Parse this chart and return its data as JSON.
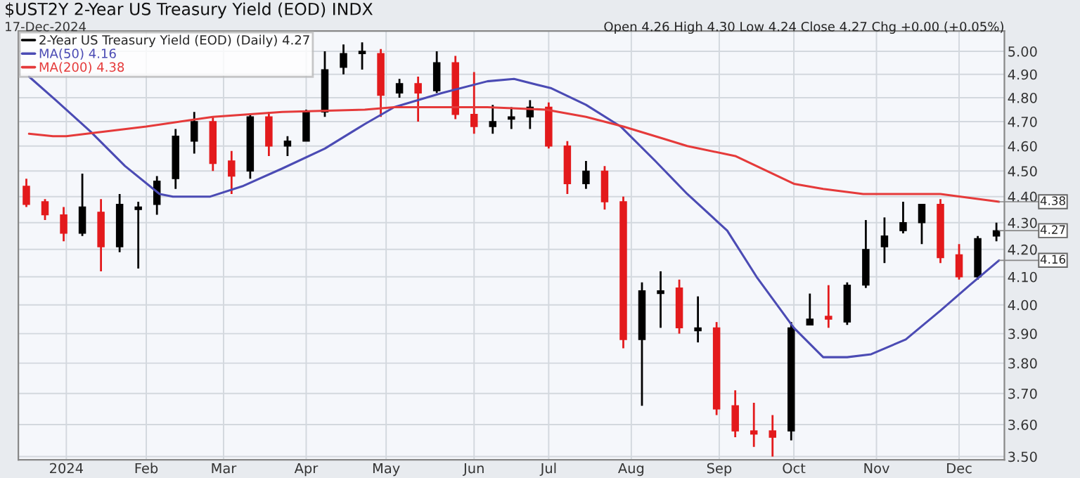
{
  "chart_data": {
    "type": "candlestick",
    "title": "$UST2Y 2-Year US Treasury Yield (EOD) INDX",
    "subtitle": "17-Dec-2024",
    "annotations": [
      "Open 4.26 High 4.30 Low 4.24 Close 4.27 Chg +0.00 (+0.05%)",
      {
        "text": "4.38",
        "x": "2024-12-17",
        "y": 4.38
      },
      {
        "text": "4.27",
        "x": "2024-12-17",
        "y": 4.27
      },
      {
        "text": "4.16",
        "x": "2024-12-17",
        "y": 4.16
      }
    ],
    "series": [
      {
        "name": "2-Year US Treasury Yield (EOD) (Daily) 4.27",
        "color": "#000000",
        "x": [
          "2023-12-18",
          "2023-12-25",
          "2024-01-01",
          "2024-01-08",
          "2024-01-15",
          "2024-01-22",
          "2024-01-29",
          "2024-02-05",
          "2024-02-12",
          "2024-02-19",
          "2024-02-26",
          "2024-03-04",
          "2024-03-11",
          "2024-03-18",
          "2024-03-25",
          "2024-04-01",
          "2024-04-08",
          "2024-04-15",
          "2024-04-22",
          "2024-04-29",
          "2024-05-06",
          "2024-05-13",
          "2024-05-20",
          "2024-05-27",
          "2024-06-03",
          "2024-06-10",
          "2024-06-17",
          "2024-06-24",
          "2024-07-01",
          "2024-07-08",
          "2024-07-15",
          "2024-07-22",
          "2024-07-29",
          "2024-08-05",
          "2024-08-12",
          "2024-08-19",
          "2024-08-26",
          "2024-09-02",
          "2024-09-09",
          "2024-09-16",
          "2024-09-23",
          "2024-09-30",
          "2024-10-07",
          "2024-10-14",
          "2024-10-21",
          "2024-10-28",
          "2024-11-04",
          "2024-11-11",
          "2024-11-18",
          "2024-11-25",
          "2024-12-02",
          "2024-12-09",
          "2024-12-16"
        ],
        "ohlc": [
          [
            4.44,
            4.47,
            4.36,
            4.37
          ],
          [
            4.38,
            4.39,
            4.31,
            4.33
          ],
          [
            4.33,
            4.36,
            4.23,
            4.26
          ],
          [
            4.26,
            4.49,
            4.25,
            4.36
          ],
          [
            4.34,
            4.39,
            4.12,
            4.21
          ],
          [
            4.21,
            4.41,
            4.19,
            4.37
          ],
          [
            4.35,
            4.38,
            4.13,
            4.36
          ],
          [
            4.37,
            4.48,
            4.33,
            4.46
          ],
          [
            4.47,
            4.67,
            4.43,
            4.64
          ],
          [
            4.62,
            4.74,
            4.57,
            4.7
          ],
          [
            4.7,
            4.72,
            4.5,
            4.53
          ],
          [
            4.54,
            4.58,
            4.41,
            4.48
          ],
          [
            4.5,
            4.73,
            4.47,
            4.72
          ],
          [
            4.72,
            4.74,
            4.56,
            4.6
          ],
          [
            4.6,
            4.64,
            4.56,
            4.62
          ],
          [
            4.62,
            4.75,
            4.62,
            4.74
          ],
          [
            4.74,
            5.0,
            4.72,
            4.92
          ],
          [
            4.93,
            5.03,
            4.9,
            4.99
          ],
          [
            4.99,
            5.04,
            4.92,
            5.0
          ],
          [
            4.99,
            5.01,
            4.72,
            4.81
          ],
          [
            4.82,
            4.88,
            4.8,
            4.86
          ],
          [
            4.86,
            4.89,
            4.7,
            4.82
          ],
          [
            4.83,
            5.0,
            4.82,
            4.95
          ],
          [
            4.95,
            4.98,
            4.71,
            4.73
          ],
          [
            4.73,
            4.91,
            4.65,
            4.68
          ],
          [
            4.68,
            4.77,
            4.65,
            4.7
          ],
          [
            4.71,
            4.76,
            4.67,
            4.72
          ],
          [
            4.72,
            4.79,
            4.67,
            4.76
          ],
          [
            4.76,
            4.78,
            4.59,
            4.6
          ],
          [
            4.6,
            4.62,
            4.41,
            4.45
          ],
          [
            4.45,
            4.54,
            4.43,
            4.5
          ],
          [
            4.5,
            4.52,
            4.35,
            4.38
          ],
          [
            4.38,
            4.4,
            3.85,
            3.88
          ],
          [
            3.88,
            4.08,
            3.66,
            4.05
          ],
          [
            4.04,
            4.12,
            3.92,
            4.05
          ],
          [
            4.06,
            4.09,
            3.9,
            3.92
          ],
          [
            3.91,
            4.03,
            3.87,
            3.92
          ],
          [
            3.92,
            3.94,
            3.63,
            3.65
          ],
          [
            3.66,
            3.71,
            3.56,
            3.58
          ],
          [
            3.58,
            3.67,
            3.53,
            3.57
          ],
          [
            3.58,
            3.63,
            3.5,
            3.56
          ],
          [
            3.58,
            3.94,
            3.55,
            3.92
          ],
          [
            3.93,
            4.04,
            3.93,
            3.95
          ],
          [
            3.96,
            4.07,
            3.92,
            3.95
          ],
          [
            3.94,
            4.08,
            3.93,
            4.07
          ],
          [
            4.07,
            4.31,
            4.06,
            4.2
          ],
          [
            4.21,
            4.32,
            4.15,
            4.25
          ],
          [
            4.27,
            4.38,
            4.26,
            4.3
          ],
          [
            4.3,
            4.37,
            4.22,
            4.37
          ],
          [
            4.37,
            4.39,
            4.15,
            4.17
          ],
          [
            4.18,
            4.22,
            4.09,
            4.1
          ],
          [
            4.1,
            4.25,
            4.09,
            4.24
          ],
          [
            4.25,
            4.3,
            4.23,
            4.27
          ]
        ],
        "colors": [
          "#e31a1c",
          "#e31a1c",
          "#e31a1c",
          "#000000",
          "#e31a1c",
          "#000000",
          "#000000",
          "#000000",
          "#000000",
          "#000000",
          "#e31a1c",
          "#e31a1c",
          "#000000",
          "#e31a1c",
          "#000000",
          "#000000",
          "#000000",
          "#000000",
          "#000000",
          "#e31a1c",
          "#000000",
          "#e31a1c",
          "#000000",
          "#e31a1c",
          "#e31a1c",
          "#000000",
          "#000000",
          "#000000",
          "#e31a1c",
          "#e31a1c",
          "#000000",
          "#e31a1c",
          "#e31a1c",
          "#000000",
          "#000000",
          "#e31a1c",
          "#000000",
          "#e31a1c",
          "#e31a1c",
          "#e31a1c",
          "#e31a1c",
          "#000000",
          "#000000",
          "#e31a1c",
          "#000000",
          "#000000",
          "#000000",
          "#000000",
          "#000000",
          "#e31a1c",
          "#e31a1c",
          "#000000",
          "#000000"
        ]
      },
      {
        "type": "line",
        "name": "MA(50) 4.16",
        "color": "#4b4bb4",
        "x": [
          "2023-12-19",
          "2023-12-29",
          "2024-01-11",
          "2024-01-24",
          "2024-02-06",
          "2024-02-11",
          "2024-02-25",
          "2024-03-08",
          "2024-03-23",
          "2024-04-08",
          "2024-04-23",
          "2024-05-04",
          "2024-05-22",
          "2024-06-08",
          "2024-06-18",
          "2024-07-02",
          "2024-07-15",
          "2024-07-28",
          "2024-08-10",
          "2024-08-22",
          "2024-09-06",
          "2024-09-17",
          "2024-10-01",
          "2024-10-12",
          "2024-10-21",
          "2024-10-30",
          "2024-11-12",
          "2024-11-25",
          "2024-12-06",
          "2024-12-17"
        ],
        "values": [
          4.89,
          4.79,
          4.66,
          4.52,
          4.41,
          4.4,
          4.4,
          4.44,
          4.51,
          4.59,
          4.69,
          4.76,
          4.82,
          4.87,
          4.88,
          4.84,
          4.77,
          4.68,
          4.54,
          4.41,
          4.27,
          4.1,
          3.92,
          3.82,
          3.82,
          3.83,
          3.88,
          3.98,
          4.07,
          4.16
        ]
      },
      {
        "type": "line",
        "name": "MA(200) 4.38",
        "color": "#e53a3a",
        "x": [
          "2023-12-19",
          "2023-12-28",
          "2024-01-02",
          "2024-02-01",
          "2024-02-26",
          "2024-03-23",
          "2024-04-23",
          "2024-05-04",
          "2024-06-08",
          "2024-06-30",
          "2024-07-15",
          "2024-07-29",
          "2024-08-13",
          "2024-08-22",
          "2024-09-09",
          "2024-10-01",
          "2024-10-12",
          "2024-10-27",
          "2024-11-25",
          "2024-12-17"
        ],
        "values": [
          4.65,
          4.64,
          4.64,
          4.68,
          4.72,
          4.74,
          4.75,
          4.76,
          4.76,
          4.75,
          4.72,
          4.68,
          4.63,
          4.6,
          4.56,
          4.45,
          4.43,
          4.41,
          4.41,
          4.38
        ]
      }
    ],
    "log": true,
    "ylim": [
      3.49,
      5.09
    ],
    "yticks": [
      {
        "value": 3.5,
        "label": "3.50"
      },
      {
        "value": 3.6,
        "label": "3.60"
      },
      {
        "value": 3.7,
        "label": "3.70"
      },
      {
        "value": 3.8,
        "label": "3.80"
      },
      {
        "value": 3.9,
        "label": "3.90"
      },
      {
        "value": 4.0,
        "label": "4.00"
      },
      {
        "value": 4.1,
        "label": "4.10"
      },
      {
        "value": 4.2,
        "label": "4.20"
      },
      {
        "value": 4.3,
        "label": "4.30"
      },
      {
        "value": 4.4,
        "label": "4.40"
      },
      {
        "value": 4.5,
        "label": "4.50"
      },
      {
        "value": 4.6,
        "label": "4.60"
      },
      {
        "value": 4.7,
        "label": "4.70"
      },
      {
        "value": 4.8,
        "label": "4.80"
      },
      {
        "value": 4.9,
        "label": "4.90"
      },
      {
        "value": 5.0,
        "label": "5.00"
      }
    ],
    "xlim": [
      "2023-12-15",
      "2024-12-19"
    ],
    "xticks": [
      {
        "value": "2024-01-02",
        "label": "2024"
      },
      {
        "value": "2024-02-01",
        "label": "Feb"
      },
      {
        "value": "2024-03-01",
        "label": "Mar"
      },
      {
        "value": "2024-04-01",
        "label": "Apr"
      },
      {
        "value": "2024-05-01",
        "label": "May"
      },
      {
        "value": "2024-06-03",
        "label": "Jun"
      },
      {
        "value": "2024-07-01",
        "label": "Jul"
      },
      {
        "value": "2024-08-01",
        "label": "Aug"
      },
      {
        "value": "2024-09-03",
        "label": "Sep"
      },
      {
        "value": "2024-10-01",
        "label": "Oct"
      },
      {
        "value": "2024-11-01",
        "label": "Nov"
      },
      {
        "value": "2024-12-02",
        "label": "Dec"
      }
    ],
    "grid": true,
    "legend": "top left"
  }
}
